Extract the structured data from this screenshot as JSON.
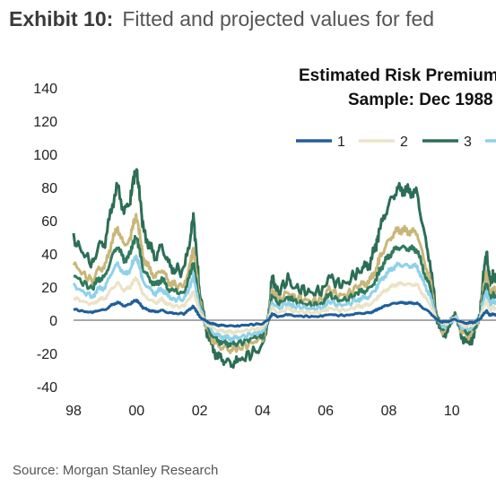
{
  "header": {
    "exhibit": "Exhibit 10:",
    "title": "Fitted and projected values for fed"
  },
  "source": "Source: Morgan Stanley Research",
  "chart_data": {
    "type": "line",
    "title_lines": [
      "Estimated Risk Premium",
      "Sample: Dec 1988"
    ],
    "ylim": [
      -40,
      140
    ],
    "yticks": [
      140,
      120,
      100,
      80,
      60,
      40,
      20,
      0,
      -20,
      -40
    ],
    "xlim": [
      1998,
      2011.4
    ],
    "xticks": [
      {
        "label": "98",
        "value": 1998
      },
      {
        "label": "00",
        "value": 2000
      },
      {
        "label": "02",
        "value": 2002
      },
      {
        "label": "04",
        "value": 2004
      },
      {
        "label": "06",
        "value": 2006
      },
      {
        "label": "08",
        "value": 2008
      },
      {
        "label": "10",
        "value": 2010
      }
    ],
    "legend_position": "top-right",
    "base_curve": {
      "x": [
        1998.0,
        1998.3,
        1998.6,
        1998.8,
        1999.0,
        1999.2,
        1999.4,
        1999.6,
        1999.8,
        1999.9,
        2000.0,
        2000.1,
        2000.2,
        2000.4,
        2000.6,
        2000.8,
        2001.0,
        2001.2,
        2001.5,
        2001.7,
        2001.8,
        2001.9,
        2002.0,
        2002.2,
        2002.4,
        2002.6,
        2002.8,
        2003.0,
        2003.2,
        2003.5,
        2003.8,
        2004.0,
        2004.2,
        2004.3,
        2004.5,
        2004.8,
        2005.0,
        2005.3,
        2005.6,
        2005.9,
        2006.1,
        2006.4,
        2006.7,
        2007.0,
        2007.2,
        2007.4,
        2007.6,
        2007.7,
        2007.9,
        2008.1,
        2008.3,
        2008.5,
        2008.7,
        2008.9,
        2009.1,
        2009.3,
        2009.5,
        2009.7,
        2009.9,
        2010.1,
        2010.3,
        2010.5,
        2010.7,
        2010.9,
        2011.0,
        2011.1,
        2011.2,
        2011.3,
        2011.4
      ],
      "y": [
        0.55,
        0.45,
        0.38,
        0.5,
        0.52,
        0.75,
        0.9,
        0.72,
        0.8,
        0.95,
        1.0,
        0.84,
        0.62,
        0.5,
        0.42,
        0.5,
        0.38,
        0.34,
        0.33,
        0.55,
        0.7,
        0.45,
        0.18,
        -0.05,
        -0.18,
        -0.25,
        -0.27,
        -0.29,
        -0.28,
        -0.24,
        -0.2,
        -0.18,
        0.05,
        0.3,
        0.18,
        0.28,
        0.22,
        0.2,
        0.18,
        0.2,
        0.3,
        0.24,
        0.25,
        0.33,
        0.35,
        0.38,
        0.5,
        0.6,
        0.72,
        0.82,
        0.88,
        0.87,
        0.86,
        0.85,
        0.6,
        0.4,
        0.05,
        -0.1,
        -0.05,
        0.05,
        -0.1,
        -0.15,
        -0.1,
        0.05,
        0.3,
        0.46,
        0.25,
        0.3,
        0.28
      ]
    },
    "series": [
      {
        "name": "1",
        "color": "#1f5f9a",
        "scale": 12
      },
      {
        "name": "2",
        "color": "#ece3c6",
        "scale": 25
      },
      {
        "name": "3",
        "color": "#2c6e55",
        "scale": 90
      },
      {
        "name": "",
        "color": "#8fd1ea",
        "scale": 38
      },
      {
        "name": "",
        "color": "#c9b678",
        "scale": 62
      },
      {
        "name": "",
        "color": "#2f7a5e",
        "scale": 50
      }
    ]
  }
}
